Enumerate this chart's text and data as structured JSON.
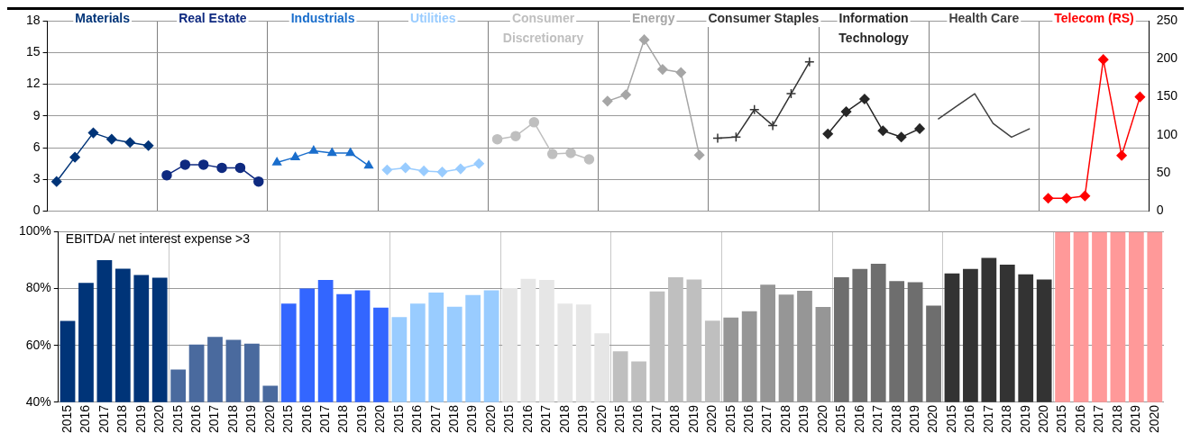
{
  "chart_data": [
    {
      "type": "line",
      "categories": [
        null,
        null,
        null,
        null,
        null,
        null,
        null,
        null,
        null,
        null,
        null,
        null,
        null,
        null,
        null,
        null,
        null,
        null,
        null,
        null,
        null,
        null,
        null,
        null,
        null,
        null,
        null,
        null,
        null,
        null,
        null,
        null,
        null,
        null,
        null,
        null,
        null,
        null,
        null,
        null,
        null,
        null,
        null,
        null,
        null,
        null,
        null,
        null,
        null,
        null,
        null,
        null,
        null,
        null,
        null,
        null,
        null,
        null,
        null,
        null
      ],
      "ylim": [
        0,
        18
      ],
      "yticks": [
        0,
        3,
        6,
        9,
        12,
        15,
        18
      ],
      "y2lim": [
        0,
        250
      ],
      "y2ticks": [
        0,
        50,
        100,
        150,
        200,
        250
      ],
      "grid": true,
      "tick_labels": "y",
      "series": [
        {
          "name": "Materials",
          "color": "#003478",
          "marker": "diamond",
          "values": [
            2.8,
            5.1,
            7.4,
            6.8,
            6.5,
            6.2,
            null,
            null,
            null,
            null,
            null,
            null,
            null,
            null,
            null,
            null,
            null,
            null,
            null,
            null,
            null,
            null,
            null,
            null,
            null,
            null,
            null,
            null,
            null,
            null,
            null,
            null,
            null,
            null,
            null,
            null,
            null,
            null,
            null,
            null,
            null,
            null,
            null,
            null,
            null,
            null,
            null,
            null,
            null,
            null,
            null,
            null,
            null,
            null,
            null,
            null,
            null,
            null,
            null,
            null
          ]
        },
        {
          "name": "Real Estate",
          "color": "#0f2a80",
          "marker": "circle",
          "values": [
            null,
            null,
            null,
            null,
            null,
            null,
            3.4,
            4.4,
            4.4,
            4.1,
            4.1,
            2.8,
            null,
            null,
            null,
            null,
            null,
            null,
            null,
            null,
            null,
            null,
            null,
            null,
            null,
            null,
            null,
            null,
            null,
            null,
            null,
            null,
            null,
            null,
            null,
            null,
            null,
            null,
            null,
            null,
            null,
            null,
            null,
            null,
            null,
            null,
            null,
            null,
            null,
            null,
            null,
            null,
            null,
            null,
            null,
            null,
            null,
            null,
            null,
            null
          ]
        },
        {
          "name": "Industrials",
          "color": "#1a6ecc",
          "marker": "triangle",
          "values": [
            null,
            null,
            null,
            null,
            null,
            null,
            null,
            null,
            null,
            null,
            null,
            null,
            4.6,
            5.1,
            5.7,
            5.5,
            5.5,
            4.3,
            null,
            null,
            null,
            null,
            null,
            null,
            null,
            null,
            null,
            null,
            null,
            null,
            null,
            null,
            null,
            null,
            null,
            null,
            null,
            null,
            null,
            null,
            null,
            null,
            null,
            null,
            null,
            null,
            null,
            null,
            null,
            null,
            null,
            null,
            null,
            null,
            null,
            null,
            null,
            null,
            null,
            null
          ]
        },
        {
          "name": "Utilities",
          "color": "#99ccff",
          "marker": "diamond",
          "values": [
            null,
            null,
            null,
            null,
            null,
            null,
            null,
            null,
            null,
            null,
            null,
            null,
            null,
            null,
            null,
            null,
            null,
            null,
            3.9,
            4.1,
            3.8,
            3.7,
            4.0,
            4.5,
            null,
            null,
            null,
            null,
            null,
            null,
            null,
            null,
            null,
            null,
            null,
            null,
            null,
            null,
            null,
            null,
            null,
            null,
            null,
            null,
            null,
            null,
            null,
            null,
            null,
            null,
            null,
            null,
            null,
            null,
            null,
            null,
            null,
            null,
            null,
            null
          ]
        },
        {
          "name": "Consumer Discretionary",
          "color": "#bfbfbf",
          "marker": "circle",
          "values": [
            null,
            null,
            null,
            null,
            null,
            null,
            null,
            null,
            null,
            null,
            null,
            null,
            null,
            null,
            null,
            null,
            null,
            null,
            null,
            null,
            null,
            null,
            null,
            null,
            6.8,
            7.1,
            8.4,
            5.4,
            5.5,
            4.9,
            null,
            null,
            null,
            null,
            null,
            null,
            null,
            null,
            null,
            null,
            null,
            null,
            null,
            null,
            null,
            null,
            null,
            null,
            null,
            null,
            null,
            null,
            null,
            null,
            null,
            null,
            null,
            null,
            null,
            null
          ]
        },
        {
          "name": "Energy",
          "color": "#a6a6a6",
          "marker": "diamond",
          "values": [
            null,
            null,
            null,
            null,
            null,
            null,
            null,
            null,
            null,
            null,
            null,
            null,
            null,
            null,
            null,
            null,
            null,
            null,
            null,
            null,
            null,
            null,
            null,
            null,
            null,
            null,
            null,
            null,
            null,
            null,
            10.4,
            11.0,
            16.2,
            13.4,
            13.1,
            5.3,
            null,
            null,
            null,
            null,
            null,
            null,
            null,
            null,
            null,
            null,
            null,
            null,
            null,
            null,
            null,
            null,
            null,
            null,
            null,
            null,
            null,
            null,
            null,
            null
          ]
        },
        {
          "name": "Consumer Staples",
          "color": "#333333",
          "marker": "cross",
          "values": [
            null,
            null,
            null,
            null,
            null,
            null,
            null,
            null,
            null,
            null,
            null,
            null,
            null,
            null,
            null,
            null,
            null,
            null,
            null,
            null,
            null,
            null,
            null,
            null,
            null,
            null,
            null,
            null,
            null,
            null,
            null,
            null,
            null,
            null,
            null,
            null,
            6.9,
            7.0,
            9.6,
            8.1,
            11.1,
            14.1,
            null,
            null,
            null,
            null,
            null,
            null,
            null,
            null,
            null,
            null,
            null,
            null,
            null,
            null,
            null,
            null,
            null,
            null
          ]
        },
        {
          "name": "Information Technology",
          "color": "#262626",
          "marker": "diamond",
          "values": [
            null,
            null,
            null,
            null,
            null,
            null,
            null,
            null,
            null,
            null,
            null,
            null,
            null,
            null,
            null,
            null,
            null,
            null,
            null,
            null,
            null,
            null,
            null,
            null,
            null,
            null,
            null,
            null,
            null,
            null,
            null,
            null,
            null,
            null,
            null,
            null,
            null,
            null,
            null,
            null,
            null,
            null,
            7.3,
            9.4,
            10.6,
            7.6,
            7.0,
            7.8,
            null,
            null,
            null,
            null,
            null,
            null,
            null,
            null,
            null,
            null,
            null,
            null
          ]
        },
        {
          "name": "Health Care",
          "color": "#404040",
          "marker": "none",
          "values": [
            null,
            null,
            null,
            null,
            null,
            null,
            null,
            null,
            null,
            null,
            null,
            null,
            null,
            null,
            null,
            null,
            null,
            null,
            null,
            null,
            null,
            null,
            null,
            null,
            null,
            null,
            null,
            null,
            null,
            null,
            null,
            null,
            null,
            null,
            null,
            null,
            null,
            null,
            null,
            null,
            null,
            null,
            null,
            null,
            null,
            null,
            null,
            null,
            8.7,
            9.9,
            11.1,
            8.3,
            7.0,
            7.8,
            null,
            null,
            null,
            null,
            null,
            null
          ]
        },
        {
          "name": "Telecom (RS)",
          "color": "#ff0000",
          "marker": "diamond",
          "axis": "y2",
          "values": [
            null,
            null,
            null,
            null,
            null,
            null,
            null,
            null,
            null,
            null,
            null,
            null,
            null,
            null,
            null,
            null,
            null,
            null,
            null,
            null,
            null,
            null,
            null,
            null,
            null,
            null,
            null,
            null,
            null,
            null,
            null,
            null,
            null,
            null,
            null,
            null,
            null,
            null,
            null,
            null,
            null,
            null,
            null,
            null,
            null,
            null,
            null,
            null,
            null,
            null,
            null,
            null,
            null,
            null,
            17,
            17,
            20,
            199,
            73,
            150
          ]
        }
      ]
    },
    {
      "type": "bar",
      "annotations": [
        "EBITDA/ net interest expense >3"
      ],
      "categories": [
        "2015",
        "2016",
        "2017",
        "2018",
        "2019",
        "2020",
        "2015",
        "2016",
        "2017",
        "2018",
        "2019",
        "2020",
        "2015",
        "2016",
        "2017",
        "2018",
        "2019",
        "2020",
        "2015",
        "2016",
        "2017",
        "2018",
        "2019",
        "2020",
        "2015",
        "2016",
        "2017",
        "2018",
        "2019",
        "2020",
        "2015",
        "2016",
        "2017",
        "2018",
        "2019",
        "2020",
        "2015",
        "2016",
        "2017",
        "2018",
        "2019",
        "2020",
        "2015",
        "2016",
        "2017",
        "2018",
        "2019",
        "2020",
        "2015",
        "2016",
        "2017",
        "2018",
        "2019",
        "2020",
        "2015",
        "2016",
        "2017",
        "2018",
        "2019",
        "2020"
      ],
      "values": [
        68.6,
        82,
        90,
        87,
        84.8,
        83.8,
        51.5,
        60.3,
        63,
        62,
        60.6,
        45.8,
        74.7,
        80,
        83,
        78,
        79.4,
        73.3,
        70,
        74.7,
        78.6,
        73.6,
        77.7,
        79.4,
        80.2,
        83.4,
        83,
        74.7,
        74.4,
        64.3,
        57.9,
        54.4,
        79,
        84,
        83.2,
        68.7,
        69.8,
        72,
        81.4,
        77.9,
        79.2,
        73.5,
        84,
        86.9,
        88.7,
        82.6,
        82.2,
        74,
        85.3,
        86.9,
        90.8,
        88.4,
        85,
        83.2,
        100,
        100,
        100,
        100,
        100,
        100
      ],
      "colors": [
        "#003478",
        "#003478",
        "#003478",
        "#003478",
        "#003478",
        "#003478",
        "#4a6a9e",
        "#4a6a9e",
        "#4a6a9e",
        "#4a6a9e",
        "#4a6a9e",
        "#4a6a9e",
        "#3366ff",
        "#3366ff",
        "#3366ff",
        "#3366ff",
        "#3366ff",
        "#3366ff",
        "#99ccff",
        "#99ccff",
        "#99ccff",
        "#99ccff",
        "#99ccff",
        "#99ccff",
        "#e6e6e6",
        "#e6e6e6",
        "#e6e6e6",
        "#e6e6e6",
        "#e6e6e6",
        "#e6e6e6",
        "#bfbfbf",
        "#bfbfbf",
        "#bfbfbf",
        "#bfbfbf",
        "#bfbfbf",
        "#bfbfbf",
        "#969696",
        "#969696",
        "#969696",
        "#969696",
        "#969696",
        "#969696",
        "#6e6e6e",
        "#6e6e6e",
        "#6e6e6e",
        "#6e6e6e",
        "#6e6e6e",
        "#6e6e6e",
        "#333333",
        "#333333",
        "#333333",
        "#333333",
        "#333333",
        "#333333",
        "#ff9999",
        "#ff9999",
        "#ff9999",
        "#ff9999",
        "#ff9999",
        "#ff9999"
      ],
      "ylim": [
        40,
        100
      ],
      "yticks": [
        {
          "value": 40,
          "label": "40%"
        },
        {
          "value": 60,
          "label": "60%"
        },
        {
          "value": 80,
          "label": "80%"
        },
        {
          "value": 100,
          "label": "100%"
        }
      ],
      "grid": true
    }
  ]
}
